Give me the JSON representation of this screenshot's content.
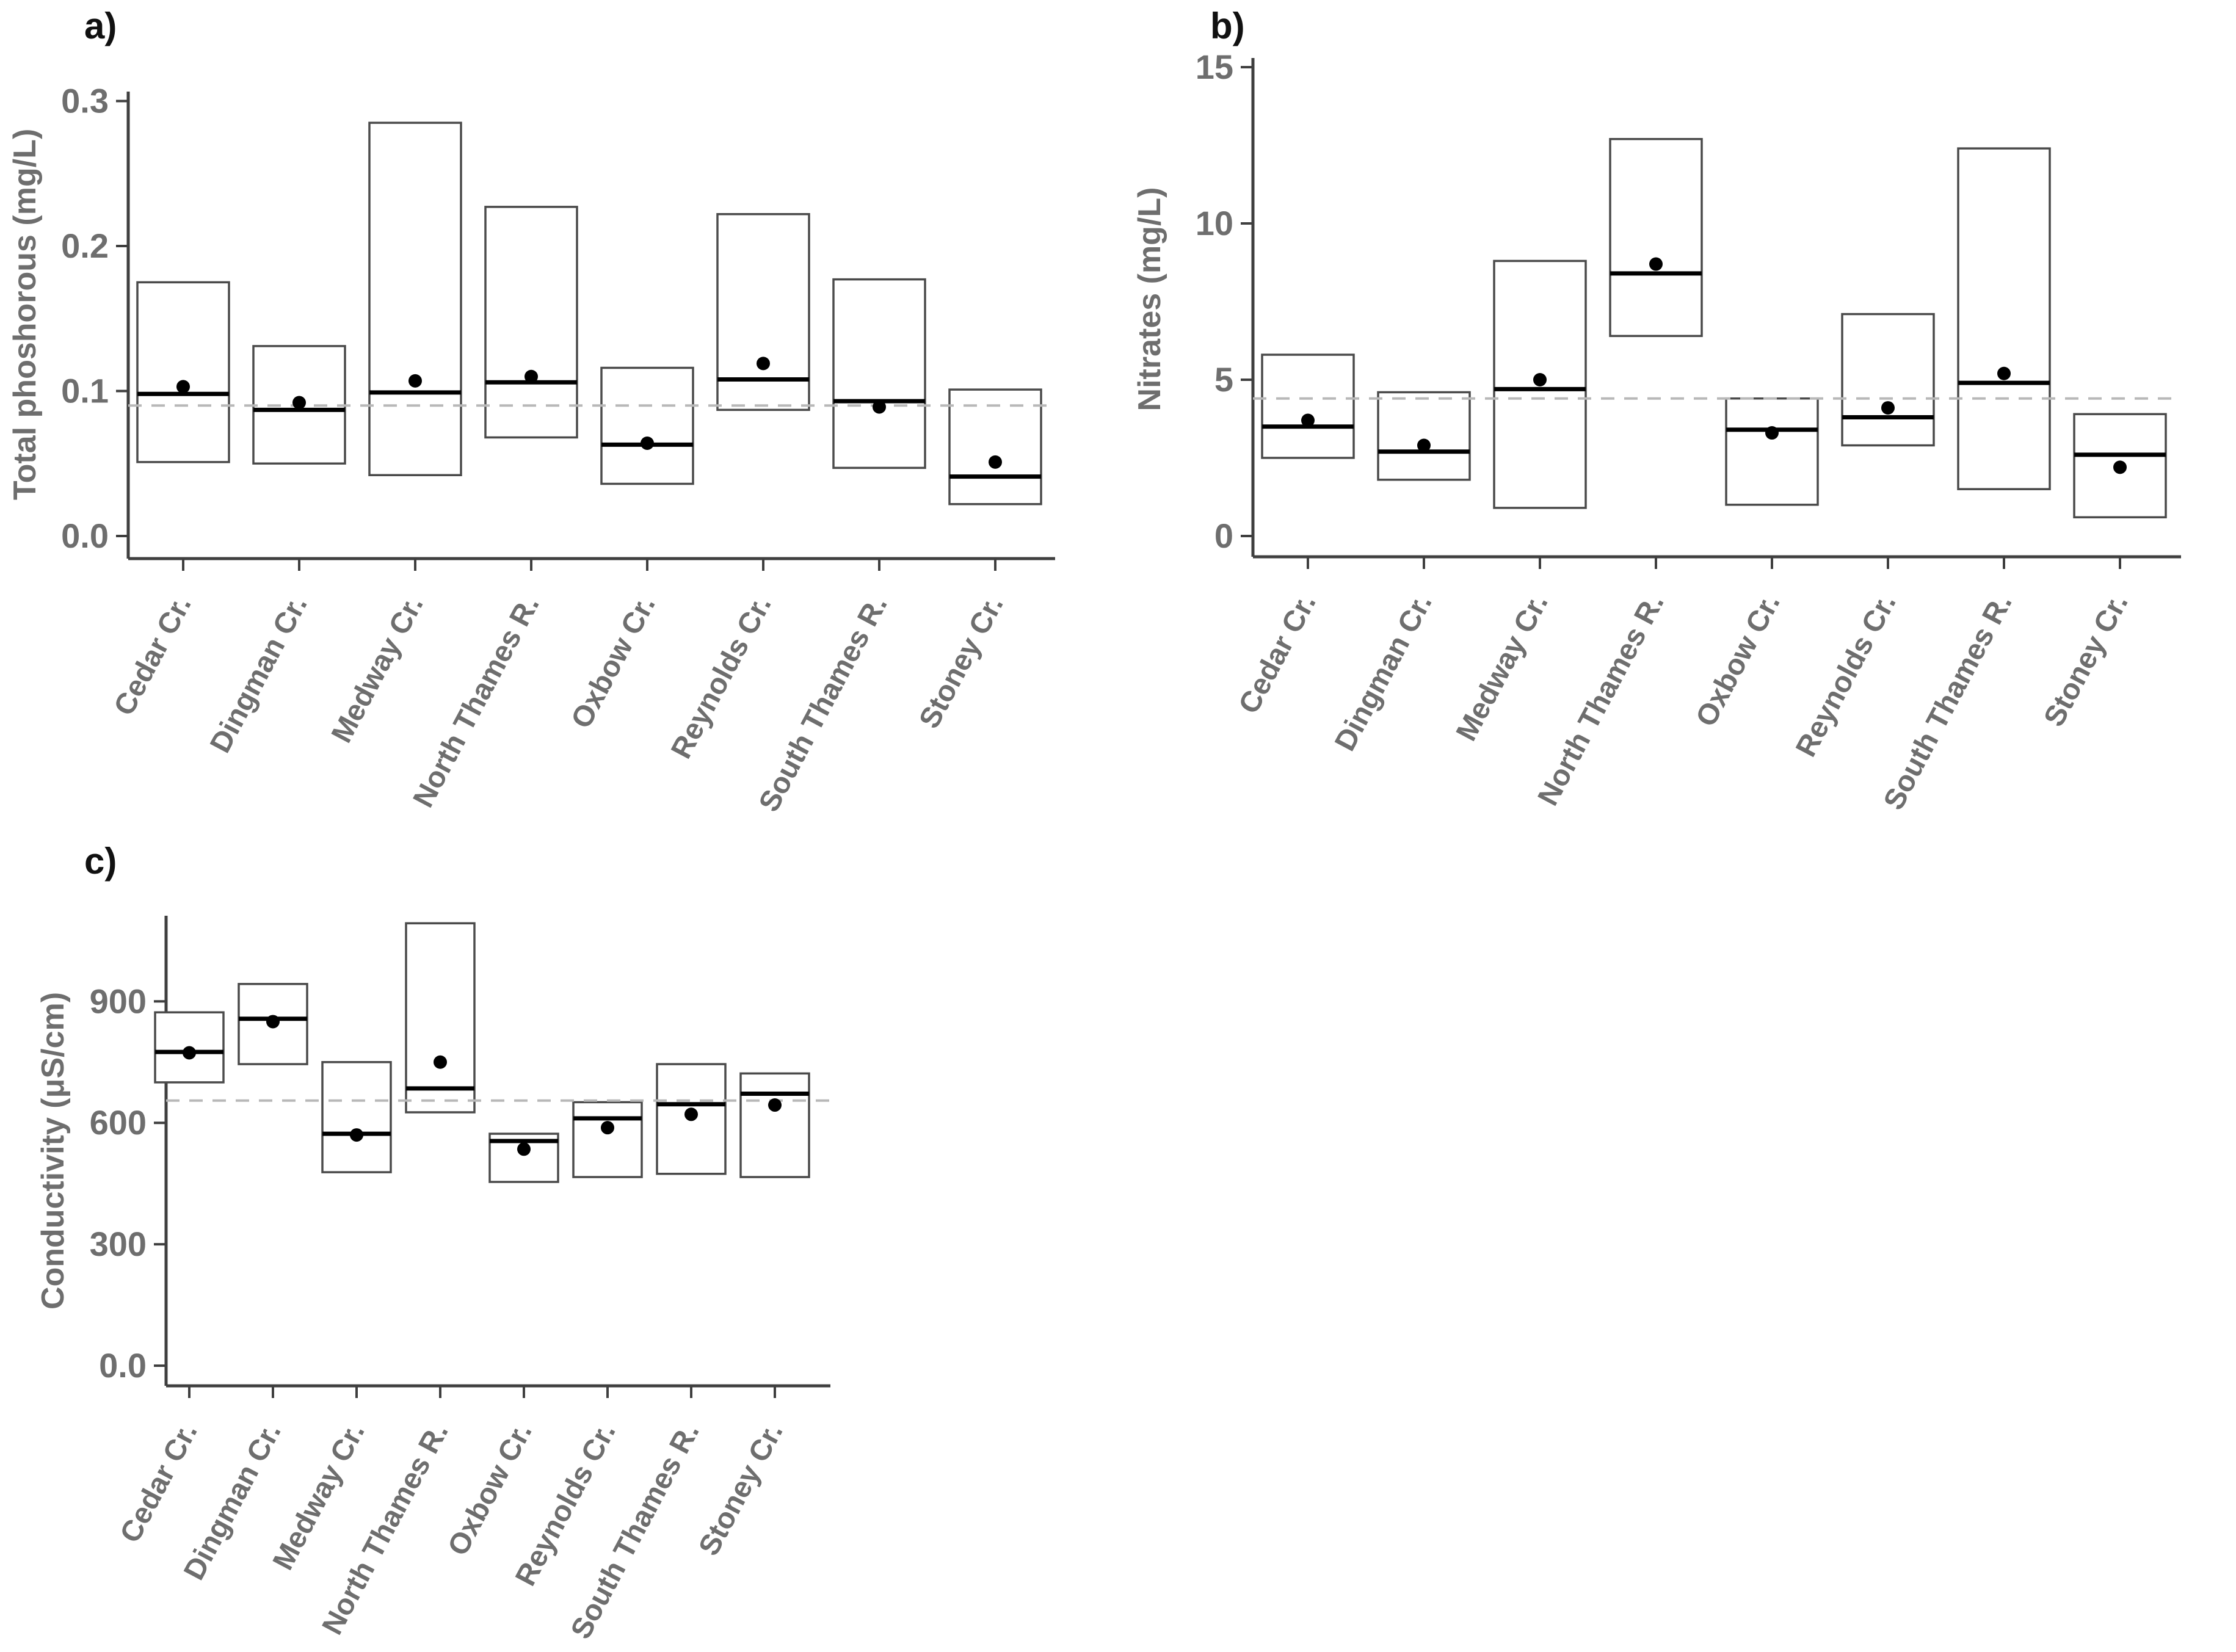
{
  "figure": {
    "background": "#ffffff",
    "description": "Three-panel floating box plot figure comparing stream sites"
  },
  "colors": {
    "box_stroke": "#4a4a4a",
    "box_fill": "#ffffff",
    "median_line": "#000000",
    "mean_dot": "#000000",
    "dashed_reference_line": "#b8b8b8",
    "axis": "#3f3f3f",
    "tick_label_gray": "#6e6e6e",
    "panel_label_color": "#111111"
  },
  "categories": [
    "Cedar Cr.",
    "Dingman Cr.",
    "Medway Cr.",
    "North Thames R.",
    "Oxbow Cr.",
    "Reynolds Cr.",
    "South Thames R.",
    "Stoney Cr."
  ],
  "chart_data": [
    {
      "id": "a",
      "type": "bar",
      "subtype": "floating-box-range-with-median-and-mean-dot",
      "panel_label": "a)",
      "ylabel": "Total phoshorous (mg/L)",
      "xlabel": "",
      "ylim": [
        0,
        0.315
      ],
      "grid": "off",
      "legend": "none",
      "yticks": [
        {
          "value": 0,
          "label": "0.0"
        },
        {
          "value": 0.1,
          "label": "0.1"
        },
        {
          "value": 0.2,
          "label": "0.2"
        },
        {
          "value": 0.3,
          "label": "0.3"
        }
      ],
      "dashed_reference_value": 0.09,
      "series": [
        {
          "name": "Cedar Cr.",
          "low": 0.051,
          "high": 0.175,
          "median": 0.098,
          "mean_dot": 0.103
        },
        {
          "name": "Dingman Cr.",
          "low": 0.05,
          "high": 0.131,
          "median": 0.087,
          "mean_dot": 0.092
        },
        {
          "name": "Medway Cr.",
          "low": 0.042,
          "high": 0.285,
          "median": 0.099,
          "mean_dot": 0.107
        },
        {
          "name": "North Thames R.",
          "low": 0.068,
          "high": 0.227,
          "median": 0.106,
          "mean_dot": 0.11
        },
        {
          "name": "Oxbow Cr.",
          "low": 0.036,
          "high": 0.116,
          "median": 0.063,
          "mean_dot": 0.064
        },
        {
          "name": "Reynolds Cr.",
          "low": 0.087,
          "high": 0.222,
          "median": 0.108,
          "mean_dot": 0.119
        },
        {
          "name": "South Thames R.",
          "low": 0.047,
          "high": 0.177,
          "median": 0.093,
          "mean_dot": 0.089
        },
        {
          "name": "Stoney Cr.",
          "low": 0.022,
          "high": 0.101,
          "median": 0.041,
          "mean_dot": 0.051
        }
      ]
    },
    {
      "id": "b",
      "type": "bar",
      "subtype": "floating-box-range-with-median-and-mean-dot",
      "panel_label": "b)",
      "ylabel": "Nitrates (mg/L)",
      "xlabel": "",
      "ylim": [
        0,
        15.3
      ],
      "grid": "off",
      "legend": "none",
      "yticks": [
        {
          "value": 0,
          "label": "0"
        },
        {
          "value": 5,
          "label": "5"
        },
        {
          "value": 10,
          "label": "10"
        },
        {
          "value": 15,
          "label": "15"
        }
      ],
      "dashed_reference_value": 4.4,
      "series": [
        {
          "name": "Cedar Cr.",
          "low": 2.5,
          "high": 5.8,
          "median": 3.5,
          "mean_dot": 3.7
        },
        {
          "name": "Dingman Cr.",
          "low": 1.8,
          "high": 4.6,
          "median": 2.7,
          "mean_dot": 2.9
        },
        {
          "name": "Medway Cr.",
          "low": 0.9,
          "high": 8.8,
          "median": 4.7,
          "mean_dot": 5.0
        },
        {
          "name": "North Thames R.",
          "low": 6.4,
          "high": 12.7,
          "median": 8.4,
          "mean_dot": 8.7
        },
        {
          "name": "Oxbow Cr.",
          "low": 1.0,
          "high": 4.4,
          "median": 3.4,
          "mean_dot": 3.3
        },
        {
          "name": "Reynolds Cr.",
          "low": 2.9,
          "high": 7.1,
          "median": 3.8,
          "mean_dot": 4.1
        },
        {
          "name": "South Thames R.",
          "low": 1.5,
          "high": 12.4,
          "median": 4.9,
          "mean_dot": 5.2
        },
        {
          "name": "Stoney Cr.",
          "low": 0.6,
          "high": 3.9,
          "median": 2.6,
          "mean_dot": 2.2
        }
      ]
    },
    {
      "id": "c",
      "type": "bar",
      "subtype": "floating-box-range-with-median-and-mean-dot",
      "panel_label": "c)",
      "ylabel": "Conductivity (μS/cm)",
      "xlabel": "",
      "ylim": [
        0,
        1110
      ],
      "grid": "off",
      "legend": "none",
      "yticks": [
        {
          "value": 0,
          "label": "0.0"
        },
        {
          "value": 300,
          "label": "300"
        },
        {
          "value": 600,
          "label": "600"
        },
        {
          "value": 900,
          "label": "900"
        }
      ],
      "dashed_reference_value": 655,
      "series": [
        {
          "name": "Cedar Cr.",
          "low": 700,
          "high": 873,
          "median": 775,
          "mean_dot": 773
        },
        {
          "name": "Dingman Cr.",
          "low": 745,
          "high": 943,
          "median": 857,
          "mean_dot": 850
        },
        {
          "name": "Medway Cr.",
          "low": 478,
          "high": 750,
          "median": 573,
          "mean_dot": 570
        },
        {
          "name": "North Thames R.",
          "low": 626,
          "high": 1093,
          "median": 685,
          "mean_dot": 750
        },
        {
          "name": "Oxbow Cr.",
          "low": 454,
          "high": 573,
          "median": 555,
          "mean_dot": 535
        },
        {
          "name": "Reynolds Cr.",
          "low": 466,
          "high": 651,
          "median": 611,
          "mean_dot": 588
        },
        {
          "name": "South Thames R.",
          "low": 474,
          "high": 745,
          "median": 646,
          "mean_dot": 621
        },
        {
          "name": "Stoney Cr.",
          "low": 466,
          "high": 722,
          "median": 672,
          "mean_dot": 644
        }
      ]
    }
  ]
}
